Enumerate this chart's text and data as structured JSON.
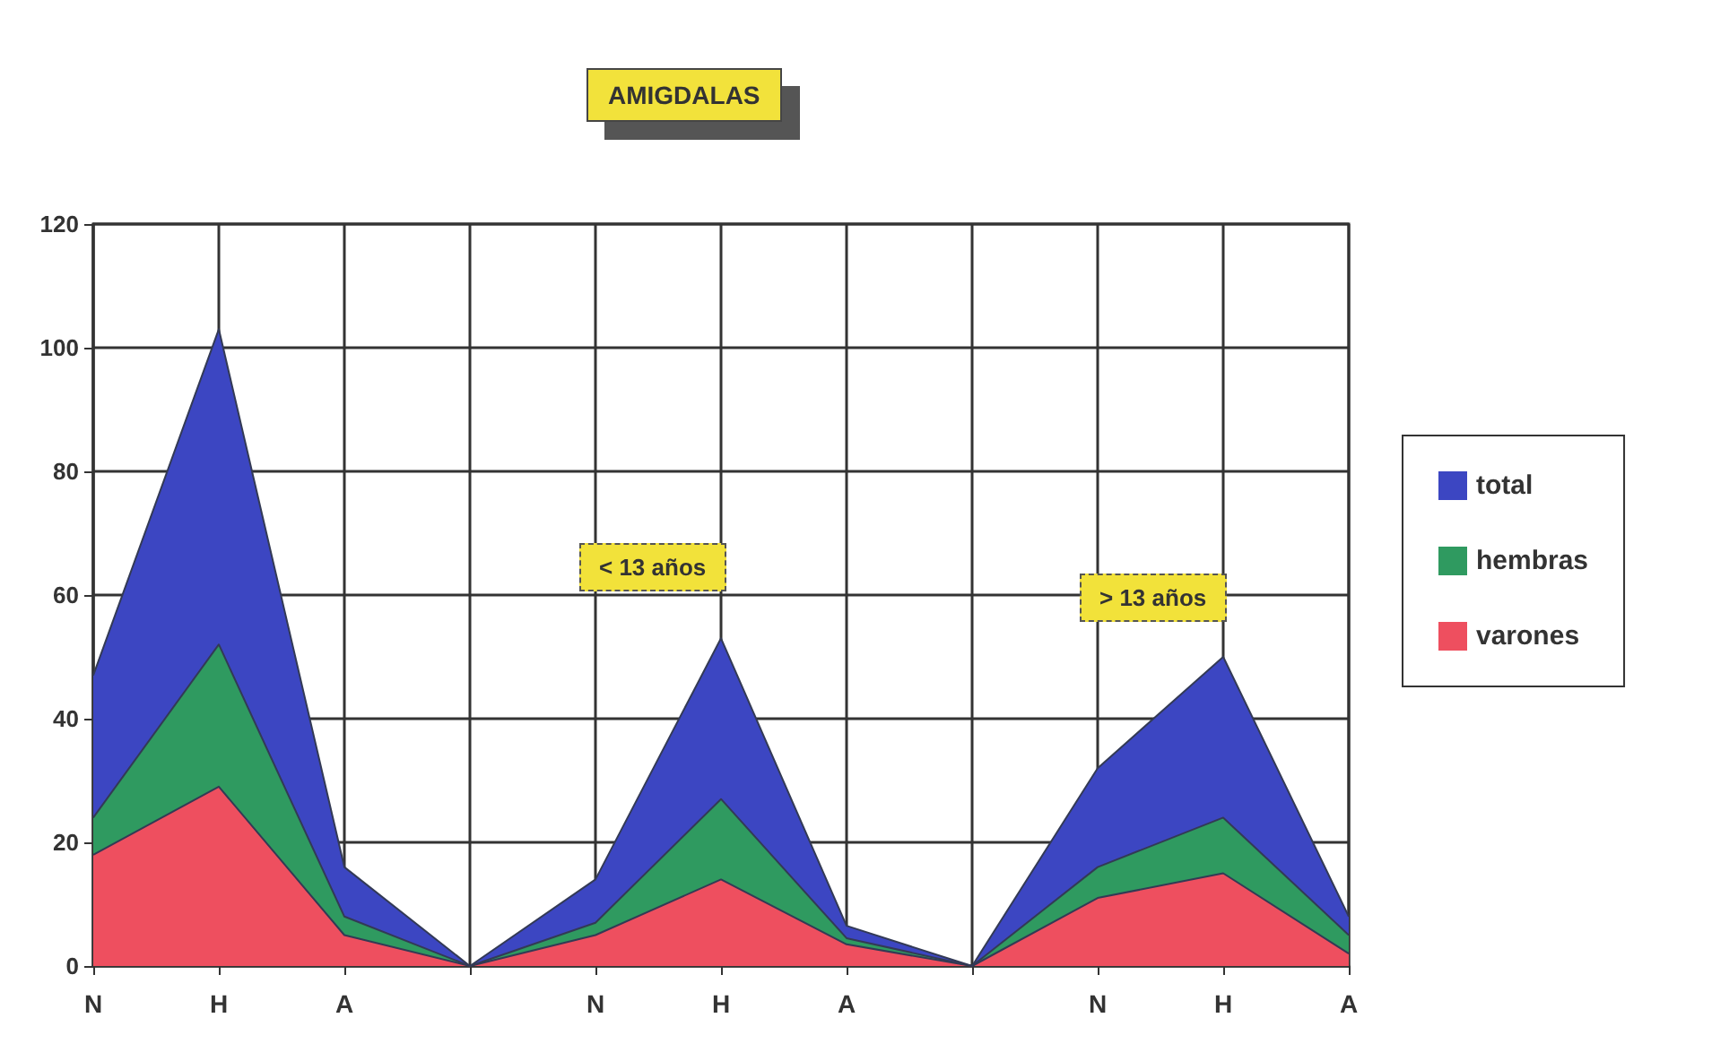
{
  "chart_data": {
    "type": "area",
    "title": "AMIGDALAS",
    "categories": [
      "N",
      "H",
      "A",
      null,
      "N",
      "H",
      "A",
      null,
      "N",
      "H",
      "A"
    ],
    "stacked": true,
    "series": [
      {
        "name": "varones",
        "color": "#ee4f5f",
        "values": [
          18,
          29,
          5,
          0,
          5,
          14,
          3.5,
          0,
          11,
          15,
          2
        ]
      },
      {
        "name": "hembras",
        "color": "#2f9a60",
        "values": [
          6,
          23,
          3,
          0,
          2,
          13,
          1,
          0,
          5,
          9,
          3
        ]
      },
      {
        "name": "total",
        "color": "#3c46c2",
        "values": [
          23,
          51,
          8,
          0,
          7,
          26,
          2,
          0,
          16,
          26,
          3
        ]
      }
    ],
    "ylim": [
      0,
      120
    ],
    "yticks": [
      0,
      20,
      40,
      60,
      80,
      100,
      120
    ],
    "grid": true,
    "legend": "right",
    "annotations": [
      "< 13 años",
      "> 13 años"
    ]
  }
}
